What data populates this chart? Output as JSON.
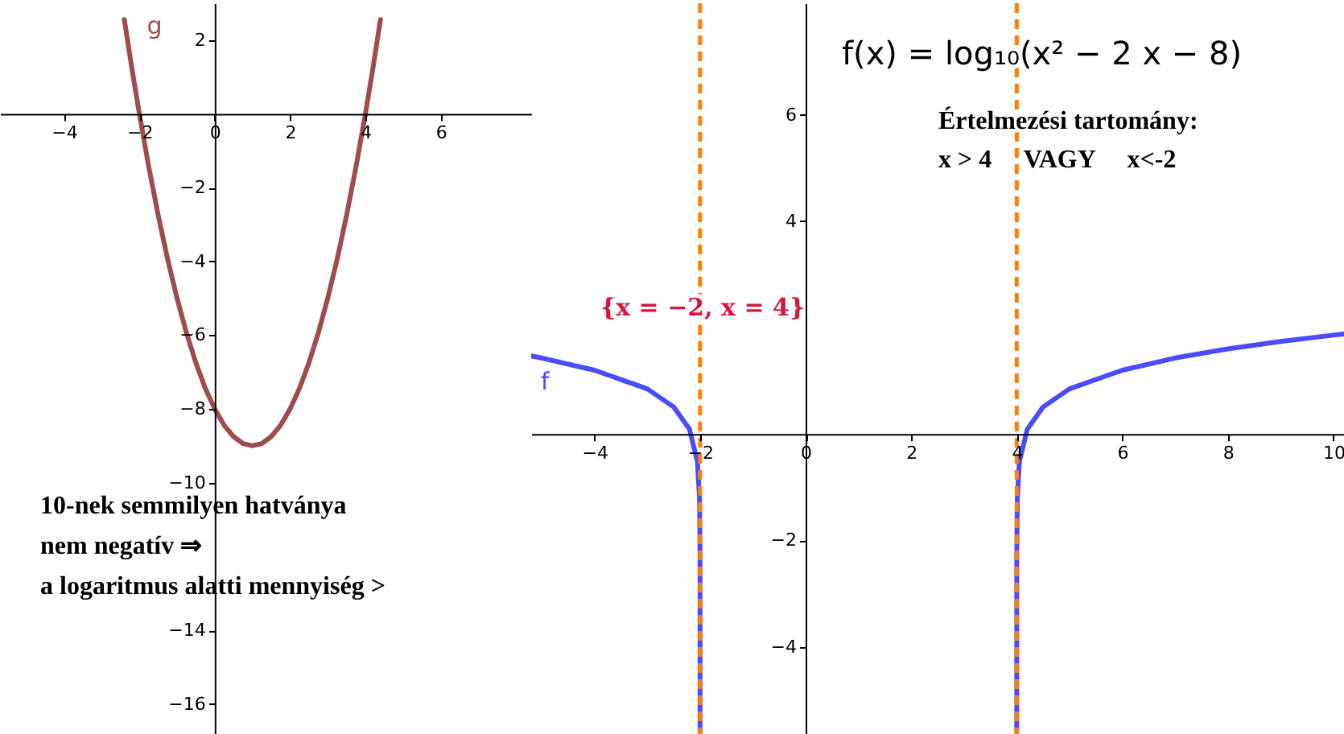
{
  "chart_data": [
    {
      "type": "line",
      "series": [
        {
          "name": "g",
          "color": "#a04c4c",
          "x": [
            -2.4,
            -2.2,
            -2,
            -1.75,
            -1.5,
            -1.25,
            -1,
            -0.75,
            -0.5,
            -0.25,
            0,
            0.25,
            0.5,
            0.75,
            1,
            1.25,
            1.5,
            1.75,
            2,
            2.25,
            2.5,
            2.75,
            3,
            3.25,
            3.5,
            3.75,
            4,
            4.2,
            4.4
          ],
          "values": [
            2.56,
            1.24,
            0,
            -1.44,
            -2.75,
            -3.94,
            -5,
            -5.94,
            -6.75,
            -7.44,
            -8,
            -8.44,
            -8.75,
            -8.94,
            -9,
            -8.94,
            -8.75,
            -8.44,
            -8,
            -7.44,
            -6.75,
            -5.94,
            -5,
            -3.94,
            -2.75,
            -1.44,
            0,
            1.24,
            2.56
          ]
        }
      ],
      "xlim": [
        -5.7,
        8.4
      ],
      "ylim": [
        -16.9,
        3
      ],
      "xticks": [
        -4,
        -2,
        0,
        2,
        4,
        6
      ],
      "yticks": [
        -16,
        -14,
        -10,
        -8,
        -6,
        -4,
        -2,
        2
      ],
      "annotations": [
        "10-nek semmilyen hatványa",
        "nem negatív ⇒",
        "a logaritmus alatti mennyiség >"
      ]
    },
    {
      "type": "line",
      "series": [
        {
          "name": "f",
          "color": "#4b4bff",
          "x": [
            -5.2,
            -5,
            -4,
            -3,
            -2.5,
            -2.2,
            -2.05,
            -2.01,
            -2.001,
            -2.0001,
            -2,
            1,
            4,
            4.0001,
            4.001,
            4.01,
            4.05,
            4.2,
            4.5,
            5,
            6,
            7,
            8,
            9,
            10,
            10.2
          ],
          "values": [
            1.47,
            1.43,
            1.2,
            0.85,
            0.51,
            0.09,
            -0.52,
            -1.22,
            -2.22,
            -3.22,
            -5.6,
            null,
            -5.6,
            -3.22,
            -2.22,
            -1.22,
            -0.52,
            0.09,
            0.51,
            0.85,
            1.2,
            1.43,
            1.6,
            1.74,
            1.86,
            1.88
          ]
        }
      ],
      "xlim": [
        -5.2,
        10.2
      ],
      "ylim": [
        -5.7,
        8.1
      ],
      "xticks": [
        -4,
        -2,
        0,
        2,
        4,
        6,
        8,
        10
      ],
      "yticks": [
        -4,
        -2,
        4,
        6
      ],
      "ref_lines": [
        {
          "axis": "x",
          "value": -2,
          "color": "#ff8000",
          "line_style": "dashed"
        },
        {
          "axis": "x",
          "value": 4,
          "color": "#ff8000",
          "line_style": "dashed"
        }
      ],
      "annotations": [
        "f(x) = log₁₀(x² − 2 x − 8)",
        "Értelmezési tartomány:",
        "x > 4     VAGY     x<-2",
        "{x = −2, x = 4}"
      ]
    }
  ]
}
